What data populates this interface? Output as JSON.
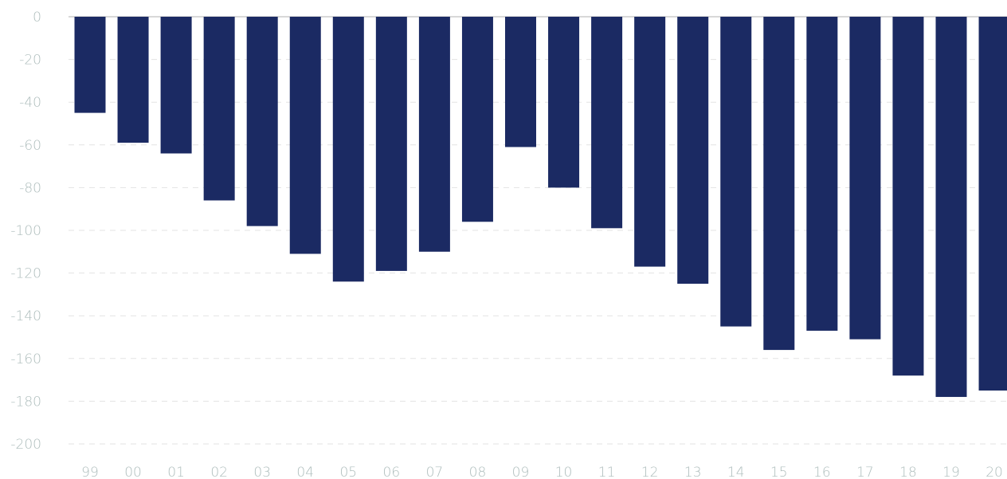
{
  "chart_data": {
    "type": "bar",
    "title": "",
    "xlabel": "",
    "ylabel": "",
    "categories": [
      "99",
      "00",
      "01",
      "02",
      "03",
      "04",
      "05",
      "06",
      "07",
      "08",
      "09",
      "10",
      "11",
      "12",
      "13",
      "14",
      "15",
      "16",
      "17",
      "18",
      "19",
      "20"
    ],
    "values": [
      -45,
      -59,
      -64,
      -86,
      -98,
      -111,
      -124,
      -119,
      -110,
      -96,
      -61,
      -80,
      -99,
      -117,
      -125,
      -145,
      -156,
      -147,
      -151,
      -168,
      -178,
      -175
    ],
    "ylim": [
      -200,
      0
    ],
    "yticks": [
      0,
      -20,
      -40,
      -60,
      -80,
      -100,
      -120,
      -140,
      -160,
      -180,
      -200
    ],
    "grid": true,
    "legend": "none",
    "colors": {
      "bar": "#1b2a63",
      "tick_text": "#aebdbc",
      "grid": "#e3e3e3"
    }
  }
}
